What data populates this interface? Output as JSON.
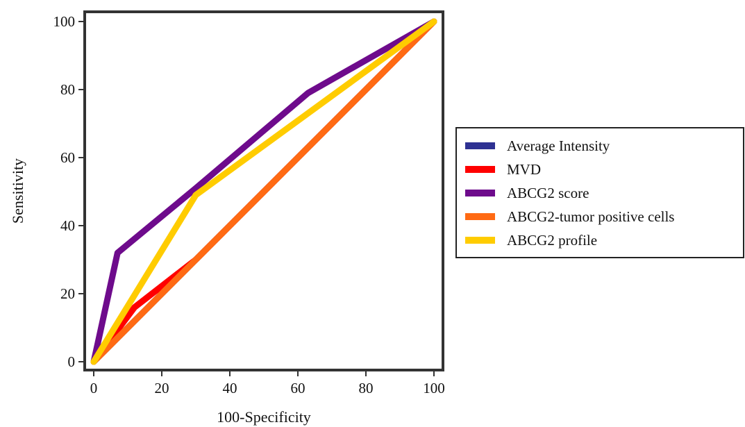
{
  "chart_data": {
    "type": "line",
    "xlabel": "100-Specificity",
    "ylabel": "Sensitivity",
    "xlim": [
      0,
      100
    ],
    "ylim": [
      0,
      100
    ],
    "xticks": [
      0,
      20,
      40,
      60,
      80,
      100
    ],
    "yticks": [
      0,
      20,
      40,
      60,
      80,
      100
    ],
    "grid": false,
    "legend_position": "right",
    "series": [
      {
        "name": "Average Intensity",
        "color": "#2E3192",
        "points": [
          [
            0,
            0
          ],
          [
            40,
            40
          ],
          [
            100,
            100
          ]
        ]
      },
      {
        "name": "MVD",
        "color": "#FF0000",
        "points": [
          [
            0,
            0
          ],
          [
            12,
            16
          ],
          [
            30,
            30
          ],
          [
            100,
            100
          ]
        ]
      },
      {
        "name": "ABCG2 score",
        "color": "#6E0B8C",
        "points": [
          [
            0,
            0
          ],
          [
            7,
            32
          ],
          [
            30,
            51
          ],
          [
            63,
            79
          ],
          [
            100,
            100
          ]
        ]
      },
      {
        "name": "ABCG2-tumor positive cells",
        "color": "#FF6A13",
        "points": [
          [
            0,
            0
          ],
          [
            40,
            40
          ],
          [
            100,
            100
          ]
        ]
      },
      {
        "name": "ABCG2 profile",
        "color": "#FFCC00",
        "points": [
          [
            0,
            0
          ],
          [
            30,
            49
          ],
          [
            100,
            100
          ]
        ]
      }
    ]
  }
}
